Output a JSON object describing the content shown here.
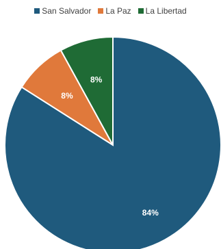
{
  "chart_data": {
    "type": "pie",
    "title": "",
    "legend_position": "top",
    "slices": [
      {
        "label": "San Salvador",
        "value": 84,
        "display": "84%",
        "color": "#1f5a7d"
      },
      {
        "label": "La Paz",
        "value": 8,
        "display": "8%",
        "color": "#e0793b"
      },
      {
        "label": "La Libertad",
        "value": 8,
        "display": "8%",
        "color": "#1f6b35"
      }
    ]
  }
}
